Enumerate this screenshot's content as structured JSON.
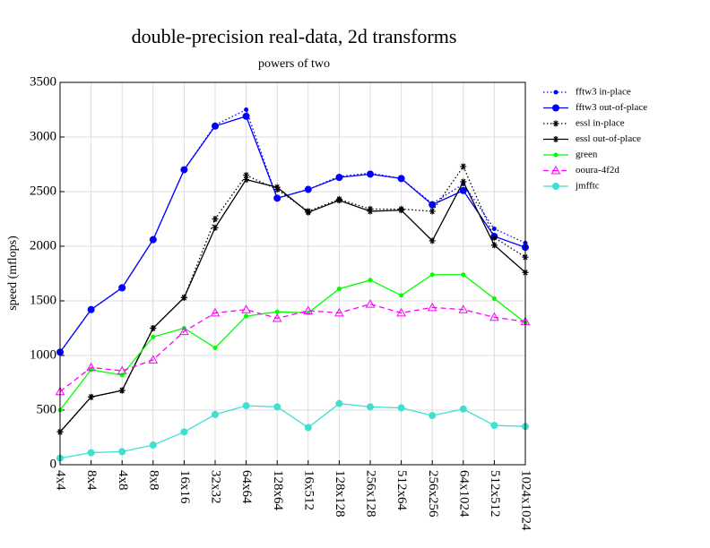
{
  "chart_data": {
    "type": "line",
    "title": "double-precision real-data, 2d transforms",
    "subtitle": "powers of two",
    "y_label": "speed (mflops)",
    "categories": [
      "4x4",
      "8x4",
      "4x8",
      "8x8",
      "16x16",
      "32x32",
      "64x64",
      "128x64",
      "16x512",
      "128x128",
      "256x128",
      "512x64",
      "256x256",
      "64x1024",
      "512x512",
      "1024x1024"
    ],
    "ylim": [
      0,
      3500
    ],
    "yticks": [
      0,
      500,
      1000,
      1500,
      2000,
      2500,
      3000,
      3500
    ],
    "grid": true,
    "legend": "right",
    "series": [
      {
        "name": "fftw3 in-place",
        "color": "#0000ff",
        "dash": "dotted",
        "marker": "dot",
        "values": [
          1030,
          1420,
          1620,
          2060,
          2700,
          3110,
          3250,
          2440,
          2520,
          2640,
          2670,
          2620,
          2390,
          2570,
          2160,
          2030
        ]
      },
      {
        "name": "fftw3 out-of-place",
        "color": "#0000ff",
        "dash": "solid",
        "marker": "circle",
        "values": [
          1030,
          1420,
          1620,
          2060,
          2700,
          3100,
          3190,
          2440,
          2520,
          2630,
          2660,
          2620,
          2380,
          2510,
          2090,
          1990
        ]
      },
      {
        "name": "essl in-place",
        "color": "#000000",
        "dash": "dotted",
        "marker": "star",
        "values": [
          300,
          620,
          680,
          1250,
          1530,
          2250,
          2650,
          2520,
          2320,
          2430,
          2340,
          2340,
          2320,
          2730,
          2080,
          1900
        ]
      },
      {
        "name": "essl out-of-place",
        "color": "#000000",
        "dash": "solid",
        "marker": "star",
        "values": [
          300,
          620,
          680,
          1250,
          1530,
          2170,
          2610,
          2540,
          2310,
          2420,
          2320,
          2330,
          2050,
          2590,
          2010,
          1760
        ]
      },
      {
        "name": "green",
        "color": "#00ff00",
        "dash": "solid",
        "marker": "dot",
        "values": [
          500,
          870,
          820,
          1170,
          1250,
          1070,
          1360,
          1400,
          1390,
          1610,
          1690,
          1550,
          1740,
          1740,
          1520,
          1300
        ]
      },
      {
        "name": "ooura-4f2d",
        "color": "#ff00ff",
        "dash": "dashed",
        "marker": "triangle",
        "values": [
          670,
          890,
          860,
          960,
          1220,
          1390,
          1420,
          1340,
          1410,
          1390,
          1470,
          1390,
          1440,
          1420,
          1350,
          1310
        ]
      },
      {
        "name": "jmfftc",
        "color": "#40e0d0",
        "dash": "solid",
        "marker": "circle",
        "values": [
          60,
          110,
          120,
          180,
          300,
          460,
          540,
          530,
          340,
          560,
          530,
          520,
          450,
          510,
          360,
          350
        ]
      }
    ]
  }
}
